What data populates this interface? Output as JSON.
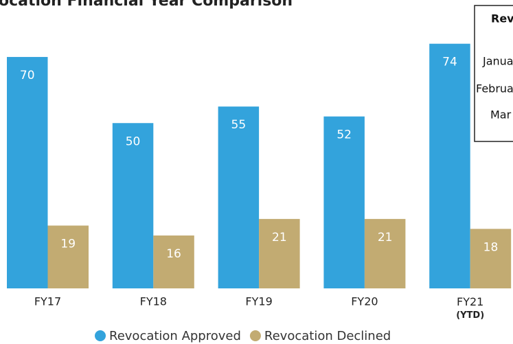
{
  "chart_data": {
    "type": "bar",
    "title": "ocation Financial Year Comparison",
    "categories": [
      "FY17",
      "FY18",
      "FY19",
      "FY20",
      "FY21 (YTD)"
    ],
    "series": [
      {
        "name": "Revocation Approved",
        "color": "#33a3dc",
        "values": [
          70,
          50,
          55,
          52,
          74
        ]
      },
      {
        "name": "Revocation Declined",
        "color": "#c2ab72",
        "values": [
          19,
          16,
          21,
          21,
          18
        ]
      }
    ]
  },
  "side_table": {
    "title": "Rev",
    "rows": [
      "Janua",
      "Februa",
      "Mar"
    ]
  }
}
